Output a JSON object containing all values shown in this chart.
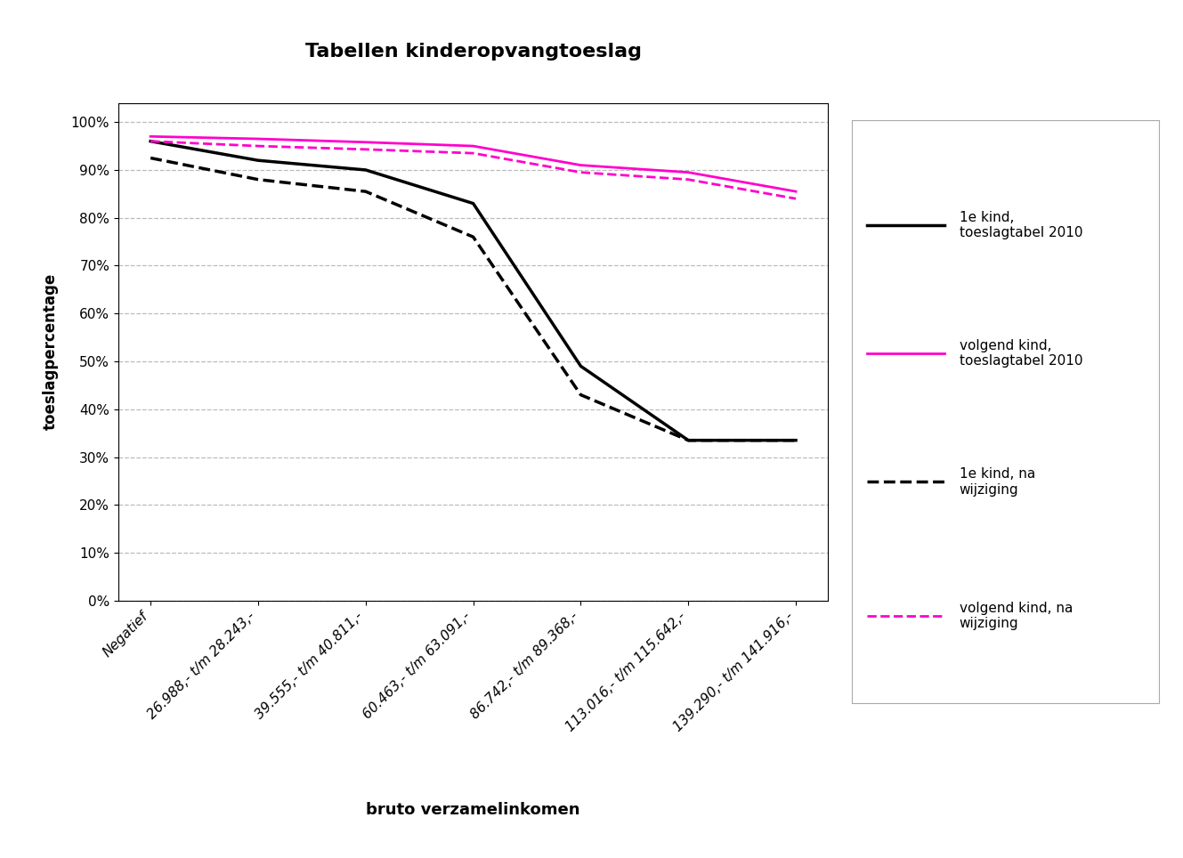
{
  "title": "Tabellen kinderopvangtoeslag",
  "xlabel": "bruto verzamelinkomen",
  "ylabel": "toeslagpercentage",
  "x_labels": [
    "Negatief",
    "26.988,- t/m 28.243,-",
    "39.555,- t/m 40.811,-",
    "60.463,- t/m 63.091,-",
    "86.742,- t/m 89.368,-",
    "113.016,- t/m 115.642,-",
    "139.290,- t/m 141.916,-"
  ],
  "series": [
    {
      "label": "1e kind,\ntoeslagtabel 2010",
      "color": "#000000",
      "linestyle": "solid",
      "linewidth": 2.5,
      "values": [
        0.96,
        0.92,
        0.9,
        0.83,
        0.49,
        0.335,
        0.335
      ]
    },
    {
      "label": "volgend kind,\ntoeslagtabel 2010",
      "color": "#ff00cc",
      "linestyle": "solid",
      "linewidth": 2.0,
      "values": [
        0.97,
        0.965,
        0.958,
        0.95,
        0.91,
        0.895,
        0.855
      ]
    },
    {
      "label": "1e kind, na\nwijziging",
      "color": "#000000",
      "linestyle": "dashed",
      "linewidth": 2.5,
      "values": [
        0.925,
        0.88,
        0.855,
        0.76,
        0.43,
        0.335,
        0.335
      ]
    },
    {
      "label": "volgend kind, na\nwijziging",
      "color": "#ff00cc",
      "linestyle": "dashed",
      "linewidth": 2.0,
      "values": [
        0.96,
        0.95,
        0.943,
        0.935,
        0.895,
        0.88,
        0.84
      ]
    }
  ],
  "ylim": [
    0.0,
    1.04
  ],
  "yticks": [
    0.0,
    0.1,
    0.2,
    0.3,
    0.4,
    0.5,
    0.6,
    0.7,
    0.8,
    0.9,
    1.0
  ],
  "ytick_labels": [
    "0%",
    "10%",
    "20%",
    "30%",
    "40%",
    "50%",
    "60%",
    "70%",
    "80%",
    "90%",
    "100%"
  ],
  "background_color": "#ffffff",
  "grid_color": "#bbbbbb",
  "plot_bg_color": "#ffffff"
}
